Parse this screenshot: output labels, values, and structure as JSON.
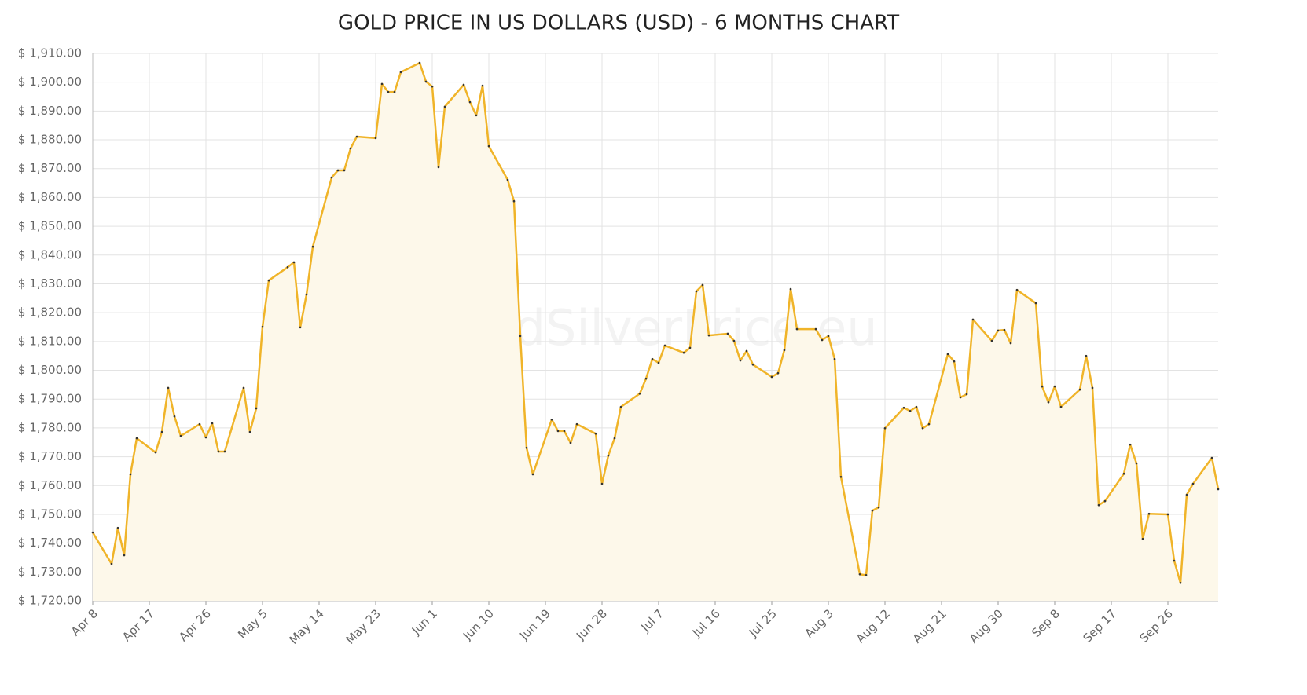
{
  "chart_data": {
    "type": "line",
    "title": "GOLD PRICE IN US DOLLARS (USD) - 6 MONTHS CHART",
    "watermark": "GoldSilverPrice.eu",
    "x": [
      0,
      3,
      4,
      5,
      6,
      7,
      10,
      11,
      12,
      13,
      14,
      17,
      18,
      19,
      20,
      21,
      24,
      25,
      26,
      27,
      28,
      31,
      32,
      33,
      34,
      35,
      38,
      39,
      40,
      41,
      42,
      45,
      46,
      47,
      48,
      49,
      52,
      53,
      54,
      55,
      56,
      59,
      60,
      61,
      62,
      63,
      66,
      67,
      68,
      69,
      70,
      73,
      74,
      75,
      76,
      77,
      80,
      81,
      82,
      83,
      84,
      87,
      88,
      89,
      90,
      91,
      94,
      95,
      96,
      97,
      98,
      101,
      102,
      103,
      104,
      105,
      108,
      109,
      110,
      111,
      112,
      115,
      116,
      117,
      118,
      119,
      122,
      123,
      124,
      125,
      126,
      129,
      130,
      131,
      132,
      133,
      136,
      137,
      138,
      139,
      140,
      143,
      144,
      145,
      146,
      147,
      150,
      151,
      152,
      153,
      154,
      157,
      158,
      159,
      160,
      161,
      164,
      165,
      166,
      167,
      168,
      171,
      172,
      173,
      174,
      175,
      178,
      179
    ],
    "series": [
      {
        "name": "Gold",
        "color": "#f0b429",
        "fill": "#fdf8ea",
        "values": [
          1743.7,
          1732.8,
          1745.3,
          1735.8,
          1763.9,
          1776.4,
          1771.5,
          1778.6,
          1793.9,
          1784,
          1777.2,
          1781.3,
          1776.7,
          1781.6,
          1771.8,
          1771.8,
          1793.9,
          1778.6,
          1786.8,
          1815.1,
          1831.2,
          1835.8,
          1837.5,
          1814.9,
          1826.3,
          1842.9,
          1866.9,
          1869.4,
          1869.4,
          1877,
          1881.1,
          1880.6,
          1899.4,
          1896.6,
          1896.6,
          1903.5,
          1906.7,
          1900.2,
          1898.5,
          1870.5,
          1891.5,
          1899.1,
          1893.1,
          1888.5,
          1898.8,
          1877.8,
          1866.1,
          1858.7,
          1811.9,
          1773.1,
          1763.9,
          1782.9,
          1778.9,
          1778.9,
          1774.8,
          1781.3,
          1778,
          1760.6,
          1770.4,
          1776.4,
          1787.3,
          1791.9,
          1797.1,
          1803.9,
          1802.6,
          1808.6,
          1806.1,
          1807.8,
          1827.4,
          1829.6,
          1812.1,
          1812.7,
          1810.2,
          1803.4,
          1806.7,
          1802,
          1797.7,
          1799,
          1807,
          1828.2,
          1814.3,
          1814.3,
          1810.5,
          1811.9,
          1803.9,
          1763,
          1729.2,
          1728.9,
          1751.3,
          1752.4,
          1779.9,
          1787,
          1785.9,
          1787.3,
          1779.9,
          1781.3,
          1805.6,
          1803.1,
          1790.6,
          1791.7,
          1817.6,
          1810.2,
          1813.8,
          1814,
          1809.4,
          1827.9,
          1823.3,
          1794.4,
          1788.9,
          1794.4,
          1787.3,
          1793.3,
          1805,
          1793.9,
          1753.2,
          1754.6,
          1764.1,
          1774.2,
          1767.7,
          1741.5,
          1750.2,
          1750,
          1733.9,
          1726.2,
          1756.8,
          1760.6,
          1769.6,
          1758.7
        ]
      }
    ],
    "xlim": [
      0,
      179
    ],
    "xticks": [
      {
        "value": 0,
        "label": "Apr 8"
      },
      {
        "value": 9,
        "label": "Apr 17"
      },
      {
        "value": 18,
        "label": "Apr 26"
      },
      {
        "value": 27,
        "label": "May 5"
      },
      {
        "value": 36,
        "label": "May 14"
      },
      {
        "value": 45,
        "label": "May 23"
      },
      {
        "value": 54,
        "label": "Jun 1"
      },
      {
        "value": 63,
        "label": "Jun 10"
      },
      {
        "value": 72,
        "label": "Jun 19"
      },
      {
        "value": 81,
        "label": "Jun 28"
      },
      {
        "value": 90,
        "label": "Jul 7"
      },
      {
        "value": 99,
        "label": "Jul 16"
      },
      {
        "value": 108,
        "label": "Jul 25"
      },
      {
        "value": 117,
        "label": "Aug 3"
      },
      {
        "value": 126,
        "label": "Aug 12"
      },
      {
        "value": 135,
        "label": "Aug 21"
      },
      {
        "value": 144,
        "label": "Aug 30"
      },
      {
        "value": 153,
        "label": "Sep 8"
      },
      {
        "value": 162,
        "label": "Sep 17"
      },
      {
        "value": 171,
        "label": "Sep 26"
      }
    ],
    "ylim": [
      1720,
      1910
    ],
    "yticks": [
      {
        "value": 1720,
        "label": "$ 1,720.00"
      },
      {
        "value": 1730,
        "label": "$ 1,730.00"
      },
      {
        "value": 1740,
        "label": "$ 1,740.00"
      },
      {
        "value": 1750,
        "label": "$ 1,750.00"
      },
      {
        "value": 1760,
        "label": "$ 1,760.00"
      },
      {
        "value": 1770,
        "label": "$ 1,770.00"
      },
      {
        "value": 1780,
        "label": "$ 1,780.00"
      },
      {
        "value": 1790,
        "label": "$ 1,790.00"
      },
      {
        "value": 1800,
        "label": "$ 1,800.00"
      },
      {
        "value": 1810,
        "label": "$ 1,810.00"
      },
      {
        "value": 1820,
        "label": "$ 1,820.00"
      },
      {
        "value": 1830,
        "label": "$ 1,830.00"
      },
      {
        "value": 1840,
        "label": "$ 1,840.00"
      },
      {
        "value": 1850,
        "label": "$ 1,850.00"
      },
      {
        "value": 1860,
        "label": "$ 1,860.00"
      },
      {
        "value": 1870,
        "label": "$ 1,870.00"
      },
      {
        "value": 1880,
        "label": "$ 1,880.00"
      },
      {
        "value": 1890,
        "label": "$ 1,890.00"
      },
      {
        "value": 1900,
        "label": "$ 1,900.00"
      },
      {
        "value": 1910,
        "label": "$ 1,910.00"
      }
    ],
    "grid": true
  }
}
